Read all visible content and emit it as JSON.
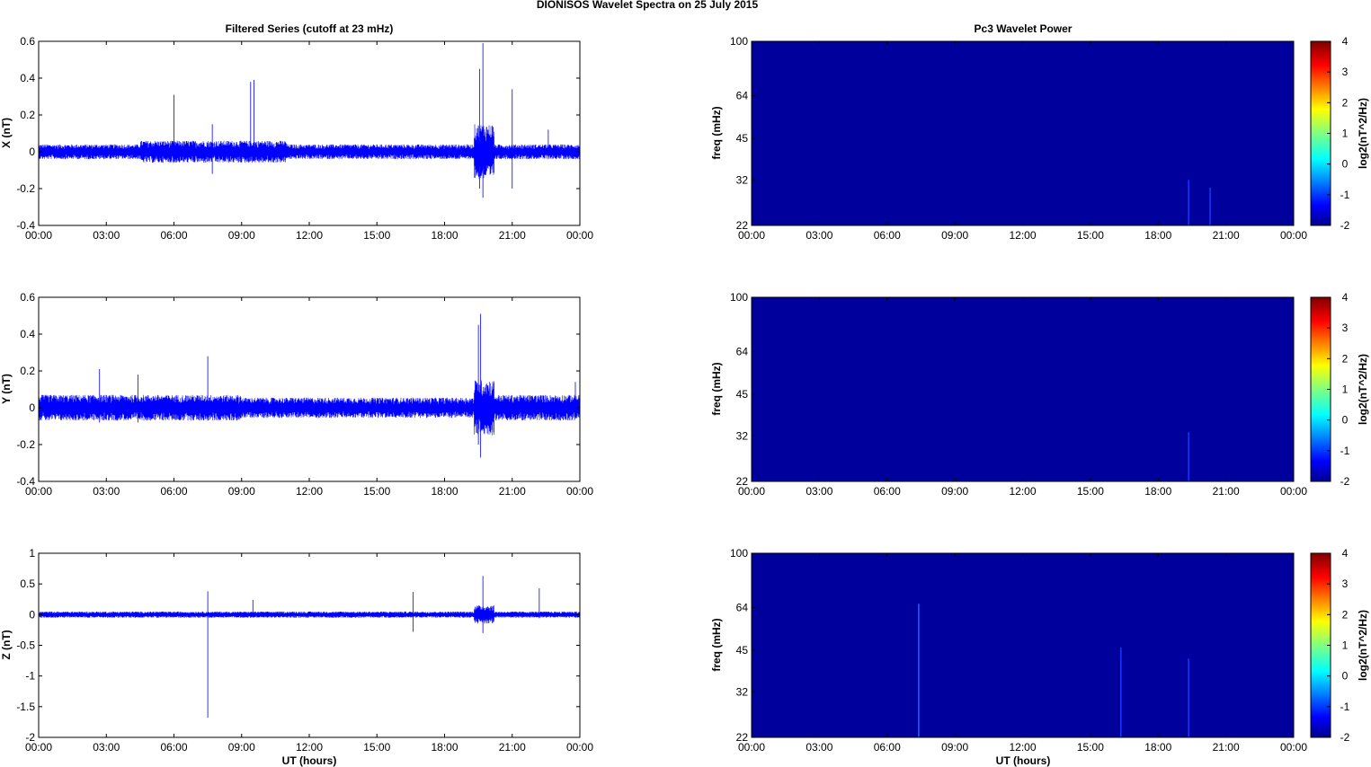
{
  "figure_title": "DIONISOS Wavelet Spectra on 25 July      2015",
  "chart_data": [
    {
      "type": "line",
      "title": "Filtered Series (cutoff at 23 mHz)",
      "ylabel": "X (nT)",
      "xlabel": "",
      "series_color": "#0000ff",
      "x_ticks": [
        "00:00",
        "03:00",
        "06:00",
        "09:00",
        "12:00",
        "15:00",
        "18:00",
        "21:00",
        "00:00"
      ],
      "x_range_hours": [
        0,
        24
      ],
      "ylim": [
        -0.4,
        0.6
      ],
      "y_ticks": [
        -0.4,
        -0.2,
        0,
        0.2,
        0.4,
        0.6
      ],
      "y_tick_labels": [
        "-0.4",
        "-0.2",
        "0",
        "0.2",
        "0.4",
        "0.6"
      ],
      "noise_envelope": [
        {
          "start_hour": 0,
          "end_hour": 4.5,
          "amplitude": 0.04
        },
        {
          "start_hour": 4.5,
          "end_hour": 11,
          "amplitude": 0.06
        },
        {
          "start_hour": 11,
          "end_hour": 19.3,
          "amplitude": 0.04
        },
        {
          "start_hour": 19.3,
          "end_hour": 20.2,
          "amplitude": 0.15
        },
        {
          "start_hour": 20.2,
          "end_hour": 24,
          "amplitude": 0.04
        }
      ],
      "spikes": [
        {
          "hour": 6.0,
          "min": -0.06,
          "max": 0.31
        },
        {
          "hour": 9.4,
          "min": -0.05,
          "max": 0.38
        },
        {
          "hour": 9.55,
          "min": -0.05,
          "max": 0.39
        },
        {
          "hour": 7.7,
          "min": -0.12,
          "max": 0.15
        },
        {
          "hour": 19.7,
          "min": -0.25,
          "max": 0.59
        },
        {
          "hour": 19.55,
          "min": -0.2,
          "max": 0.45
        },
        {
          "hour": 21.0,
          "min": -0.2,
          "max": 0.34
        },
        {
          "hour": 22.6,
          "min": -0.04,
          "max": 0.12
        }
      ]
    },
    {
      "type": "line",
      "title": "",
      "ylabel": "Y (nT)",
      "xlabel": "",
      "series_color": "#0000ff",
      "x_ticks": [
        "00:00",
        "03:00",
        "06:00",
        "09:00",
        "12:00",
        "15:00",
        "18:00",
        "21:00",
        "00:00"
      ],
      "x_range_hours": [
        0,
        24
      ],
      "ylim": [
        -0.4,
        0.6
      ],
      "y_ticks": [
        -0.4,
        -0.2,
        0,
        0.2,
        0.4,
        0.6
      ],
      "y_tick_labels": [
        "-0.4",
        "-0.2",
        "0",
        "0.2",
        "0.4",
        "0.6"
      ],
      "noise_envelope": [
        {
          "start_hour": 0,
          "end_hour": 4,
          "amplitude": 0.07
        },
        {
          "start_hour": 4,
          "end_hour": 9,
          "amplitude": 0.07
        },
        {
          "start_hour": 9,
          "end_hour": 19.3,
          "amplitude": 0.055
        },
        {
          "start_hour": 19.3,
          "end_hour": 20.2,
          "amplitude": 0.15
        },
        {
          "start_hour": 20.2,
          "end_hour": 24,
          "amplitude": 0.07
        }
      ],
      "spikes": [
        {
          "hour": 2.7,
          "min": -0.08,
          "max": 0.21
        },
        {
          "hour": 4.4,
          "min": -0.08,
          "max": 0.18
        },
        {
          "hour": 7.5,
          "min": -0.07,
          "max": 0.28
        },
        {
          "hour": 19.6,
          "min": -0.27,
          "max": 0.51
        },
        {
          "hour": 19.5,
          "min": -0.2,
          "max": 0.45
        },
        {
          "hour": 23.8,
          "min": -0.06,
          "max": 0.14
        }
      ]
    },
    {
      "type": "line",
      "title": "",
      "ylabel": "Z (nT)",
      "xlabel": "UT (hours)",
      "series_color": "#0000ff",
      "x_ticks": [
        "00:00",
        "03:00",
        "06:00",
        "09:00",
        "12:00",
        "15:00",
        "18:00",
        "21:00",
        "00:00"
      ],
      "x_range_hours": [
        0,
        24
      ],
      "ylim": [
        -2,
        1
      ],
      "y_ticks": [
        -2,
        -1.5,
        -1,
        -0.5,
        0,
        0.5,
        1
      ],
      "y_tick_labels": [
        "-2",
        "-1.5",
        "-1",
        "-0.5",
        "0",
        "0.5",
        "1"
      ],
      "noise_envelope": [
        {
          "start_hour": 0,
          "end_hour": 19.3,
          "amplitude": 0.05
        },
        {
          "start_hour": 19.3,
          "end_hour": 20.2,
          "amplitude": 0.15
        },
        {
          "start_hour": 20.2,
          "end_hour": 24,
          "amplitude": 0.05
        }
      ],
      "spikes": [
        {
          "hour": 7.5,
          "min": -1.68,
          "max": 0.38
        },
        {
          "hour": 9.5,
          "min": -0.05,
          "max": 0.24
        },
        {
          "hour": 16.6,
          "min": -0.28,
          "max": 0.37
        },
        {
          "hour": 19.7,
          "min": -0.3,
          "max": 0.63
        },
        {
          "hour": 22.2,
          "min": -0.06,
          "max": 0.43
        }
      ]
    },
    {
      "type": "heatmap",
      "title": "Pc3 Wavelet Power",
      "ylabel": "freq (mHz)",
      "xlabel": "",
      "x_ticks": [
        "00:00",
        "03:00",
        "06:00",
        "09:00",
        "12:00",
        "15:00",
        "18:00",
        "21:00",
        "00:00"
      ],
      "x_range_hours": [
        0,
        24
      ],
      "y_scale": "log",
      "ylim_mHz": [
        22,
        100
      ],
      "y_ticks": [
        22,
        32,
        45,
        64,
        100
      ],
      "background_color": "#00009c",
      "colorbar_label": "log2(nT^2/Hz)",
      "colorbar_range": [
        -2,
        4
      ],
      "colorbar_ticks": [
        "4",
        "3",
        "2",
        "1",
        "0",
        "-1",
        "-2"
      ],
      "streaks": [
        {
          "hour": 19.35,
          "top_mHz": 32,
          "color": "#1a3cff"
        },
        {
          "hour": 20.3,
          "top_mHz": 30,
          "color": "#1a3cff"
        }
      ]
    },
    {
      "type": "heatmap",
      "title": "",
      "ylabel": "freq (mHz)",
      "xlabel": "",
      "x_ticks": [
        "00:00",
        "03:00",
        "06:00",
        "09:00",
        "12:00",
        "15:00",
        "18:00",
        "21:00",
        "00:00"
      ],
      "x_range_hours": [
        0,
        24
      ],
      "y_scale": "log",
      "ylim_mHz": [
        22,
        100
      ],
      "y_ticks": [
        22,
        32,
        45,
        64,
        100
      ],
      "background_color": "#00009c",
      "colorbar_label": "log2(nT^2/Hz)",
      "colorbar_range": [
        -2,
        4
      ],
      "colorbar_ticks": [
        "4",
        "3",
        "2",
        "1",
        "0",
        "-1",
        "-2"
      ],
      "streaks": [
        {
          "hour": 19.35,
          "top_mHz": 33,
          "color": "#1a3cff"
        }
      ]
    },
    {
      "type": "heatmap",
      "title": "",
      "ylabel": "freq (mHz)",
      "xlabel": "UT (hours)",
      "x_ticks": [
        "00:00",
        "03:00",
        "06:00",
        "09:00",
        "12:00",
        "15:00",
        "18:00",
        "21:00",
        "00:00"
      ],
      "x_range_hours": [
        0,
        24
      ],
      "y_scale": "log",
      "ylim_mHz": [
        22,
        100
      ],
      "y_ticks": [
        22,
        32,
        45,
        64,
        100
      ],
      "background_color": "#00009c",
      "colorbar_label": "log2(nT^2/Hz)",
      "colorbar_range": [
        -2,
        4
      ],
      "colorbar_ticks": [
        "4",
        "3",
        "2",
        "1",
        "0",
        "-1",
        "-2"
      ],
      "streaks": [
        {
          "hour": 7.4,
          "top_mHz": 66,
          "color": "#2a6aff"
        },
        {
          "hour": 16.35,
          "top_mHz": 46,
          "color": "#1a3cff"
        },
        {
          "hour": 19.35,
          "top_mHz": 42,
          "color": "#1a3cff"
        }
      ]
    }
  ]
}
